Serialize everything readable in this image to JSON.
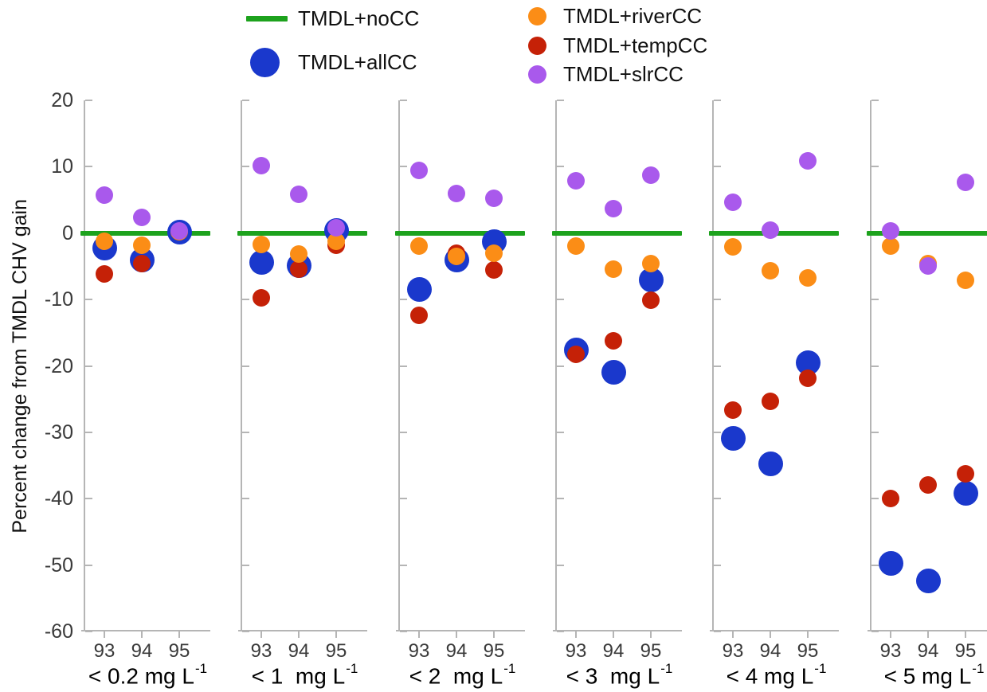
{
  "legend": {
    "items": [
      {
        "key": "noCC",
        "label": "TMDL+noCC",
        "marker": "line",
        "color": "#1da21d"
      },
      {
        "key": "allCC",
        "label": "TMDL+allCC",
        "marker": "circle-large",
        "color": "#1a38cc"
      },
      {
        "key": "riverCC",
        "label": "TMDL+riverCC",
        "marker": "circle",
        "color": "#fb8d16"
      },
      {
        "key": "tempCC",
        "label": "TMDL+tempCC",
        "marker": "circle",
        "color": "#c52107"
      },
      {
        "key": "slrCC",
        "label": "TMDL+slrCC",
        "marker": "circle",
        "color": "#a959ec"
      }
    ]
  },
  "series_colors": {
    "noCC": "#1da21d",
    "allCC": "#1a38cc",
    "riverCC": "#fb8d16",
    "tempCC": "#c52107",
    "slrCC": "#a959ec"
  },
  "axis_color": "#b5b5b5",
  "chart_data": {
    "type": "scatter",
    "ylabel": "Percent change from TMDL CHV gain",
    "ylim": [
      -60,
      20
    ],
    "yticks": [
      20,
      10,
      0,
      -10,
      -20,
      -30,
      -40,
      -50,
      -60
    ],
    "x_categories": [
      "93",
      "94",
      "95"
    ],
    "zero_reference_series": "TMDL+noCC (horizontal line at 0)",
    "legend_position": "top",
    "grid": false,
    "panels": [
      {
        "threshold_label": "< 0.2 mg L",
        "threshold_sup": "-1",
        "series": {
          "allCC": [
            -2.2,
            -4.0,
            0.2
          ],
          "riverCC": [
            -1.2,
            -1.8,
            0.2
          ],
          "tempCC": [
            -6.2,
            -4.6,
            0.2
          ],
          "slrCC": [
            5.7,
            2.4,
            0.3
          ]
        }
      },
      {
        "threshold_label": "< 1  mg L",
        "threshold_sup": "-1",
        "series": {
          "allCC": [
            -4.4,
            -4.9,
            0.4
          ],
          "riverCC": [
            -1.7,
            -3.2,
            -1.2
          ],
          "tempCC": [
            -9.8,
            -5.4,
            -1.8
          ],
          "slrCC": [
            10.2,
            5.8,
            0.8
          ]
        }
      },
      {
        "threshold_label": "< 2  mg L",
        "threshold_sup": "-1",
        "series": {
          "allCC": [
            -8.5,
            -4.1,
            -1.3
          ],
          "riverCC": [
            -1.9,
            -3.5,
            -3.0
          ],
          "tempCC": [
            -12.4,
            -3.0,
            -5.5
          ],
          "slrCC": [
            9.4,
            6.0,
            5.2
          ]
        }
      },
      {
        "threshold_label": "< 3  mg L",
        "threshold_sup": "-1",
        "series": {
          "allCC": [
            -17.6,
            -20.9,
            -7.0
          ],
          "riverCC": [
            -2.0,
            -5.4,
            -4.6
          ],
          "tempCC": [
            -18.3,
            -16.2,
            -10.1
          ],
          "slrCC": [
            7.9,
            3.7,
            8.7
          ]
        }
      },
      {
        "threshold_label": "< 4 mg L",
        "threshold_sup": "-1",
        "series": {
          "allCC": [
            -30.9,
            -34.7,
            -19.5
          ],
          "riverCC": [
            -2.1,
            -5.7,
            -6.7
          ],
          "tempCC": [
            -26.6,
            -25.3,
            -21.9
          ],
          "slrCC": [
            4.7,
            0.4,
            10.9
          ]
        }
      },
      {
        "threshold_label": "< 5 mg L",
        "threshold_sup": "-1",
        "series": {
          "allCC": [
            -49.7,
            -52.4,
            -39.2
          ],
          "riverCC": [
            -2.0,
            -4.6,
            -7.1
          ],
          "tempCC": [
            -40.0,
            -37.9,
            -36.3
          ],
          "slrCC": [
            0.3,
            -5.0,
            7.6
          ]
        }
      }
    ]
  }
}
